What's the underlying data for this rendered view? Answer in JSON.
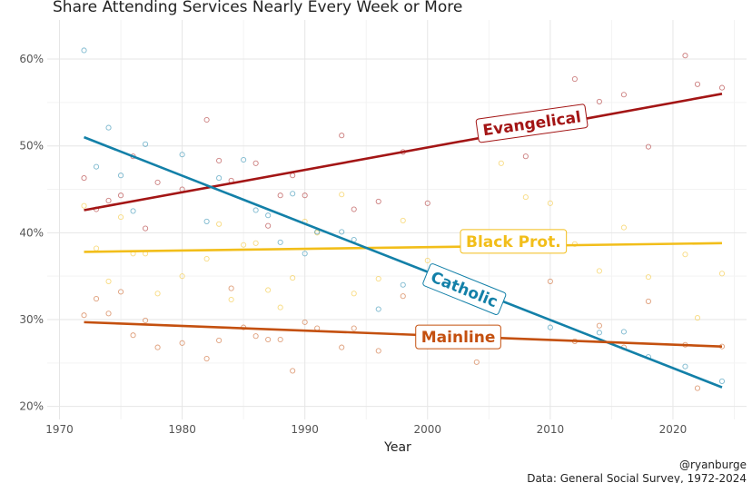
{
  "chart_data": {
    "type": "scatter",
    "title": "Share Attending Services Nearly Every Week or More",
    "xlabel": "Year",
    "ylabel": "",
    "xlim": [
      1969,
      2026
    ],
    "ylim": [
      18.5,
      64.5
    ],
    "x_ticks": [
      1970,
      1980,
      1990,
      2000,
      2010,
      2020
    ],
    "y_ticks": [
      20,
      30,
      40,
      50,
      60
    ],
    "y_tick_labels": [
      "20%",
      "30%",
      "40%",
      "50%",
      "60%"
    ],
    "grid": true,
    "series": [
      {
        "name": "Evangelical",
        "color": "#A31515",
        "trend": [
          [
            1972,
            42.6
          ],
          [
            2024,
            56.0
          ]
        ],
        "label_at": [
          2008.5,
          52.6
        ],
        "label_rotate": -8,
        "points": [
          [
            1972,
            46.3
          ],
          [
            1973,
            42.7
          ],
          [
            1974,
            43.7
          ],
          [
            1975,
            44.3
          ],
          [
            1976,
            48.8
          ],
          [
            1977,
            40.5
          ],
          [
            1978,
            45.8
          ],
          [
            1980,
            45.0
          ],
          [
            1982,
            53.0
          ],
          [
            1983,
            48.3
          ],
          [
            1984,
            46.0
          ],
          [
            1986,
            48.0
          ],
          [
            1987,
            40.8
          ],
          [
            1988,
            44.3
          ],
          [
            1989,
            46.6
          ],
          [
            1990,
            44.3
          ],
          [
            1993,
            51.2
          ],
          [
            1994,
            42.7
          ],
          [
            1996,
            43.6
          ],
          [
            1998,
            49.3
          ],
          [
            2000,
            43.4
          ],
          [
            2008,
            48.8
          ],
          [
            2010,
            52.1
          ],
          [
            2012,
            57.7
          ],
          [
            2014,
            55.1
          ],
          [
            2016,
            55.9
          ],
          [
            2018,
            49.9
          ],
          [
            2021,
            60.4
          ],
          [
            2022,
            57.1
          ],
          [
            2024,
            56.7
          ]
        ]
      },
      {
        "name": "Black Prot.",
        "color": "#F2BE1A",
        "trend": [
          [
            1972,
            37.8
          ],
          [
            2024,
            38.8
          ]
        ],
        "label_at": [
          2007,
          39.0
        ],
        "label_rotate": 0,
        "points": [
          [
            1972,
            43.1
          ],
          [
            1973,
            38.2
          ],
          [
            1974,
            34.4
          ],
          [
            1975,
            41.8
          ],
          [
            1976,
            37.6
          ],
          [
            1977,
            37.6
          ],
          [
            1978,
            33.0
          ],
          [
            1980,
            35.0
          ],
          [
            1982,
            37.0
          ],
          [
            1983,
            41.0
          ],
          [
            1984,
            32.3
          ],
          [
            1985,
            38.6
          ],
          [
            1986,
            38.8
          ],
          [
            1987,
            33.4
          ],
          [
            1988,
            31.4
          ],
          [
            1989,
            34.8
          ],
          [
            1990,
            41.3
          ],
          [
            1991,
            40.0
          ],
          [
            1993,
            44.4
          ],
          [
            1994,
            33.0
          ],
          [
            1996,
            34.7
          ],
          [
            1998,
            41.4
          ],
          [
            2000,
            36.8
          ],
          [
            2004,
            38.9
          ],
          [
            2006,
            48.0
          ],
          [
            2008,
            44.1
          ],
          [
            2010,
            43.4
          ],
          [
            2012,
            38.7
          ],
          [
            2014,
            35.6
          ],
          [
            2016,
            40.6
          ],
          [
            2018,
            34.9
          ],
          [
            2021,
            37.5
          ],
          [
            2022,
            30.2
          ],
          [
            2024,
            35.3
          ]
        ]
      },
      {
        "name": "Catholic",
        "color": "#1380A8",
        "trend": [
          [
            1972,
            51.0
          ],
          [
            2024,
            22.2
          ]
        ],
        "label_at": [
          2003,
          33.5
        ],
        "label_rotate": 22,
        "points": [
          [
            1972,
            61.0
          ],
          [
            1973,
            47.6
          ],
          [
            1974,
            52.1
          ],
          [
            1975,
            46.6
          ],
          [
            1976,
            42.5
          ],
          [
            1977,
            50.2
          ],
          [
            1980,
            49.0
          ],
          [
            1982,
            41.3
          ],
          [
            1983,
            46.3
          ],
          [
            1985,
            48.4
          ],
          [
            1986,
            42.6
          ],
          [
            1987,
            42.0
          ],
          [
            1988,
            38.9
          ],
          [
            1989,
            44.5
          ],
          [
            1990,
            37.6
          ],
          [
            1991,
            40.1
          ],
          [
            1993,
            40.1
          ],
          [
            1994,
            39.2
          ],
          [
            1996,
            31.2
          ],
          [
            1998,
            34.0
          ],
          [
            2000,
            34.8
          ],
          [
            2010,
            29.1
          ],
          [
            2014,
            28.5
          ],
          [
            2016,
            28.6
          ],
          [
            2018,
            25.7
          ],
          [
            2021,
            24.6
          ],
          [
            2024,
            22.9
          ]
        ]
      },
      {
        "name": "Mainline",
        "color": "#C4500F",
        "trend": [
          [
            1972,
            29.7
          ],
          [
            2024,
            26.9
          ]
        ],
        "label_at": [
          2002.5,
          28.0
        ],
        "label_rotate": 0,
        "points": [
          [
            1972,
            30.5
          ],
          [
            1973,
            32.4
          ],
          [
            1974,
            30.7
          ],
          [
            1975,
            33.2
          ],
          [
            1976,
            28.2
          ],
          [
            1977,
            29.9
          ],
          [
            1978,
            26.8
          ],
          [
            1980,
            27.3
          ],
          [
            1982,
            25.5
          ],
          [
            1983,
            27.6
          ],
          [
            1984,
            33.6
          ],
          [
            1985,
            29.1
          ],
          [
            1986,
            28.1
          ],
          [
            1987,
            27.7
          ],
          [
            1988,
            27.7
          ],
          [
            1989,
            24.1
          ],
          [
            1990,
            29.7
          ],
          [
            1991,
            29.0
          ],
          [
            1993,
            26.8
          ],
          [
            1994,
            29.0
          ],
          [
            1996,
            26.4
          ],
          [
            1998,
            32.7
          ],
          [
            2000,
            28.9
          ],
          [
            2004,
            25.1
          ],
          [
            2010,
            34.4
          ],
          [
            2012,
            27.5
          ],
          [
            2014,
            29.3
          ],
          [
            2016,
            26.8
          ],
          [
            2018,
            32.1
          ],
          [
            2021,
            27.1
          ],
          [
            2022,
            22.1
          ],
          [
            2024,
            26.9
          ]
        ]
      }
    ]
  },
  "caption": {
    "handle": "@ryanburge",
    "source": "Data: General Social Survey, 1972-2024"
  }
}
